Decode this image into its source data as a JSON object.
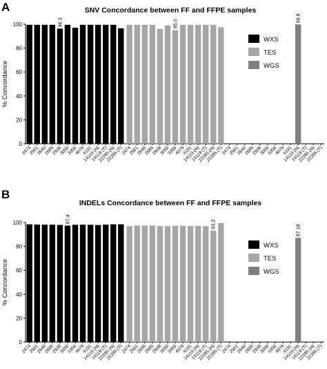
{
  "chart_data": [
    {
      "panel": "A",
      "type": "bar",
      "title": "SNV Concordance between FF and FFPE samples",
      "ylabel": "% Concordance",
      "ylim": [
        0,
        100
      ],
      "yticks": [
        "0",
        "20",
        "40",
        "60",
        "80",
        "100"
      ],
      "legend": {
        "placement": "right",
        "entries": [
          "WXS",
          "TES",
          "WGS"
        ]
      },
      "colors": {
        "WXS": "#000000",
        "TES": "#a6a6a6",
        "WGS": "#7f7f7f"
      },
      "groups": [
        {
          "name": "WXS",
          "categories": [
            "2474",
            "2561",
            "2640",
            "2685",
            "2938",
            "3050",
            "3356",
            "4079",
            "4191",
            "14119 (N)",
            "14119 (T)",
            "22285 (N)",
            "22285 (T)"
          ],
          "values": [
            99.5,
            99.5,
            99.5,
            99.5,
            96.3,
            99.5,
            97.0,
            99.5,
            99.5,
            99.5,
            99.5,
            99.5,
            96.5
          ],
          "labels": [
            "",
            "",
            "",
            "",
            "96.3",
            "",
            "",
            "",
            "",
            "",
            "",
            "",
            ""
          ]
        },
        {
          "name": "TES",
          "categories": [
            "2474",
            "2561",
            "2640",
            "2685",
            "2938",
            "3050",
            "3356",
            "4079",
            "4191",
            "14119 (N)",
            "14119 (T)",
            "22285 (N)",
            "22285 (T)"
          ],
          "values": [
            99.5,
            99.5,
            99.5,
            99.5,
            96.0,
            99.0,
            95.0,
            99.5,
            99.5,
            99.5,
            99.5,
            99.5,
            97.5
          ],
          "labels": [
            "",
            "",
            "",
            "",
            "",
            "",
            "95.0",
            "",
            "",
            "",
            "",
            "",
            ""
          ]
        },
        {
          "name": "WGS",
          "categories": [
            "2474",
            "2561",
            "2640",
            "2685",
            "2938",
            "3050",
            "3356",
            "4079",
            "4191",
            "14119 (N)",
            "14119 (T)",
            "22285 (N)",
            "22285 (T)"
          ],
          "values": [
            null,
            null,
            null,
            null,
            null,
            null,
            null,
            null,
            null,
            99.8,
            null,
            null,
            null
          ],
          "labels": [
            "",
            "",
            "",
            "",
            "",
            "",
            "",
            "",
            "",
            "99.8",
            "",
            "",
            ""
          ]
        }
      ]
    },
    {
      "panel": "B",
      "type": "bar",
      "title": "INDELs Concordance between FF and FFPE samples",
      "ylabel": "% Concordance",
      "ylim": [
        0,
        100
      ],
      "yticks": [
        "0",
        "20",
        "40",
        "60",
        "80",
        "100"
      ],
      "legend": {
        "placement": "right",
        "entries": [
          "WXS",
          "TES",
          "WGS"
        ]
      },
      "colors": {
        "WXS": "#000000",
        "TES": "#a6a6a6",
        "WGS": "#7f7f7f"
      },
      "groups": [
        {
          "name": "WXS",
          "categories": [
            "2474",
            "2561",
            "2640",
            "2685",
            "2938",
            "3050",
            "3356",
            "4079",
            "4191",
            "14119 (N)",
            "14119 (T)",
            "22285 (N)",
            "22285 (T)"
          ],
          "values": [
            98.5,
            98.3,
            98.2,
            98.2,
            98.0,
            97.4,
            98.1,
            98.2,
            98.1,
            97.9,
            98.2,
            98.5,
            98.5
          ],
          "labels": [
            "",
            "",
            "",
            "",
            "",
            "97.4",
            "",
            "",
            "",
            "",
            "",
            "",
            ""
          ]
        },
        {
          "name": "TES",
          "categories": [
            "2474",
            "2561",
            "2640",
            "2685",
            "2938",
            "3050",
            "3356",
            "4079",
            "4191",
            "14119 (N)",
            "14119 (T)",
            "22285 (N)",
            "22285 (T)"
          ],
          "values": [
            97.0,
            97.5,
            97.5,
            97.5,
            97.0,
            97.0,
            97.3,
            97.3,
            97.2,
            97.2,
            97.0,
            93.3,
            99.5
          ],
          "labels": [
            "",
            "",
            "",
            "",
            "",
            "",
            "",
            "",
            "",
            "",
            "",
            "93.3",
            ""
          ]
        },
        {
          "name": "WGS",
          "categories": [
            "2474",
            "2561",
            "2640",
            "2685",
            "2938",
            "3050",
            "3356",
            "4079",
            "4191",
            "14119 (N)",
            "14119 (T)",
            "22285 (N)",
            "22285 (T)"
          ],
          "values": [
            null,
            null,
            null,
            null,
            null,
            null,
            null,
            null,
            null,
            87.18,
            null,
            null,
            null
          ],
          "labels": [
            "",
            "",
            "",
            "",
            "",
            "",
            "",
            "",
            "",
            "87.18",
            "",
            "",
            ""
          ]
        }
      ]
    }
  ]
}
